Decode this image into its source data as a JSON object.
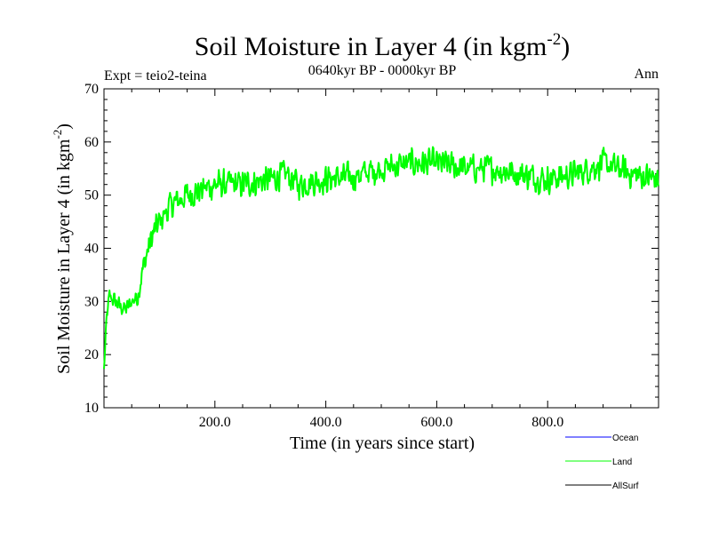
{
  "chart_data": {
    "type": "line",
    "title_main": "Soil Moisture in Layer 4 (in kgm",
    "title_sup": "-2",
    "title_close": ")",
    "subtitle": "0640kyr BP - 0000kyr BP",
    "expt_label": "Expt = teio2-teina",
    "season_label": "Ann",
    "xlabel": "Time (in years since start)",
    "ylabel_main": "Soil Moisture in Layer 4 (in kgm",
    "ylabel_sup": "-2",
    "ylabel_close": ")",
    "xlim": [
      0,
      1000
    ],
    "ylim": [
      10,
      70
    ],
    "x_major_ticks": [
      200,
      400,
      600,
      800
    ],
    "x_tick_labels": [
      "200.0",
      "400.0",
      "600.0",
      "800.0"
    ],
    "y_major_ticks": [
      10,
      20,
      30,
      40,
      50,
      60,
      70
    ],
    "y_tick_labels": [
      "10",
      "20",
      "30",
      "40",
      "50",
      "60",
      "70"
    ],
    "anchors": [
      [
        0,
        17
      ],
      [
        5,
        27
      ],
      [
        10,
        31
      ],
      [
        20,
        30
      ],
      [
        30,
        29
      ],
      [
        40,
        28.5
      ],
      [
        50,
        30
      ],
      [
        60,
        31
      ],
      [
        70,
        36
      ],
      [
        80,
        40
      ],
      [
        90,
        43
      ],
      [
        100,
        45
      ],
      [
        120,
        48
      ],
      [
        150,
        50
      ],
      [
        200,
        52
      ],
      [
        250,
        52
      ],
      [
        300,
        53
      ],
      [
        330,
        54
      ],
      [
        350,
        52
      ],
      [
        400,
        53
      ],
      [
        450,
        53.5
      ],
      [
        500,
        55
      ],
      [
        550,
        56
      ],
      [
        600,
        56
      ],
      [
        650,
        55
      ],
      [
        700,
        55
      ],
      [
        750,
        54
      ],
      [
        800,
        53
      ],
      [
        850,
        54
      ],
      [
        900,
        56
      ],
      [
        950,
        54
      ],
      [
        1000,
        53
      ]
    ],
    "noise_amplitude": 3.2,
    "series": [
      {
        "name": "Ocean",
        "color": "#0000ff",
        "shown": false
      },
      {
        "name": "Land",
        "color": "#00ff00",
        "shown": true
      },
      {
        "name": "AllSurf",
        "color": "#000000",
        "shown": false
      }
    ]
  }
}
